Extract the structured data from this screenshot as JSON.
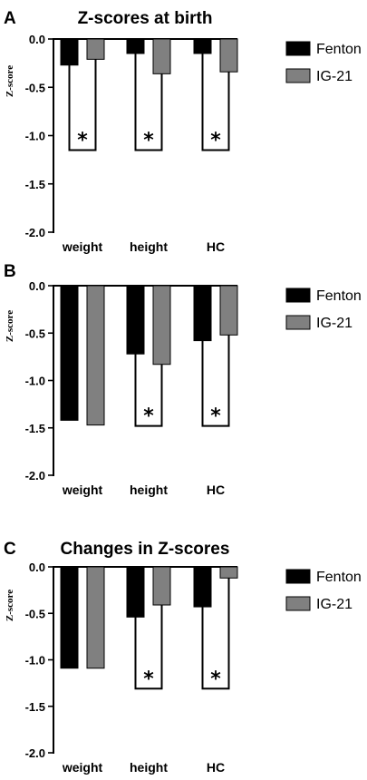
{
  "colors": {
    "fenton": "#000000",
    "ig21": "#808080",
    "axis": "#000000",
    "bracket": "#000000"
  },
  "chart_data": [
    {
      "type": "bar",
      "panel": "A",
      "title": "Z-scores at birth",
      "ylabel": "Z-score",
      "ylim": [
        -2.0,
        0.0
      ],
      "yticks": [
        0.0,
        -0.5,
        -1.0,
        -1.5,
        -2.0
      ],
      "ytick_labels": [
        "0.0",
        "-0.5",
        "-1.0",
        "-1.5",
        "-2.0"
      ],
      "categories": [
        "weight",
        "height",
        "HC"
      ],
      "series": [
        {
          "name": "Fenton",
          "values": [
            -0.27,
            -0.15,
            -0.15
          ]
        },
        {
          "name": "IG-21",
          "values": [
            -0.21,
            -0.36,
            -0.34
          ]
        }
      ],
      "significance": [
        {
          "category": "weight",
          "level": -1.15,
          "label": "*"
        },
        {
          "category": "height",
          "level": -1.15,
          "label": "*"
        },
        {
          "category": "HC",
          "level": -1.15,
          "label": "*"
        }
      ],
      "legend": "right"
    },
    {
      "type": "bar",
      "panel": "B",
      "title": "",
      "ylabel": "Z-score",
      "ylim": [
        -2.0,
        0.0
      ],
      "yticks": [
        0.0,
        -0.5,
        -1.0,
        -1.5,
        -2.0
      ],
      "ytick_labels": [
        "0.0",
        "-0.5",
        "-1.0",
        "-1.5",
        "-2.0"
      ],
      "categories": [
        "weight",
        "height",
        "HC"
      ],
      "series": [
        {
          "name": "Fenton",
          "values": [
            -1.42,
            -0.72,
            -0.58
          ]
        },
        {
          "name": "IG-21",
          "values": [
            -1.47,
            -0.83,
            -0.52
          ]
        }
      ],
      "significance": [
        {
          "category": "height",
          "level": -1.48,
          "label": "*"
        },
        {
          "category": "HC",
          "level": -1.48,
          "label": "*"
        }
      ],
      "legend": "right"
    },
    {
      "type": "bar",
      "panel": "C",
      "title": "Changes in Z-scores",
      "ylabel": "Z-score",
      "ylim": [
        -2.0,
        0.0
      ],
      "yticks": [
        0.0,
        -0.5,
        -1.0,
        -1.5,
        -2.0
      ],
      "ytick_labels": [
        "0.0",
        "-0.5",
        "-1.0",
        "-1.5",
        "-2.0"
      ],
      "categories": [
        "weight",
        "height",
        "HC"
      ],
      "series": [
        {
          "name": "Fenton",
          "values": [
            -1.09,
            -0.54,
            -0.43
          ]
        },
        {
          "name": "IG-21",
          "values": [
            -1.09,
            -0.41,
            -0.12
          ]
        }
      ],
      "significance": [
        {
          "category": "height",
          "level": -1.31,
          "label": "*"
        },
        {
          "category": "HC",
          "level": -1.31,
          "label": "*"
        }
      ],
      "legend": "right"
    }
  ]
}
